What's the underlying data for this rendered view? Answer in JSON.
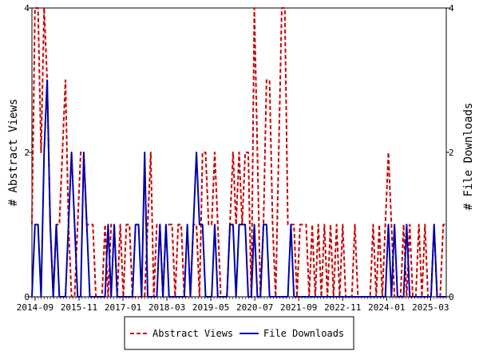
{
  "chart_data": {
    "type": "line",
    "title": "",
    "xlabel": "",
    "ylabel_left": "# Abstract Views",
    "ylabel_right": "# File Downloads",
    "x_ticks": [
      "2014-09",
      "2015-11",
      "2017-01",
      "2018-03",
      "2019-05",
      "2020-07",
      "2021-09",
      "2022-11",
      "2024-01",
      "2025-03"
    ],
    "x_range": [
      "2014-08",
      "2025-08"
    ],
    "ylim_left": [
      0,
      4
    ],
    "ylim_right": [
      0,
      4
    ],
    "y_ticks_left": [
      0,
      2,
      4
    ],
    "y_ticks_right": [
      0,
      2,
      4
    ],
    "grid": false,
    "legend_position": "bottom-center",
    "series": [
      {
        "name": "Abstract Views",
        "color": "#cc0000",
        "style": "dashed",
        "axis": "left",
        "values": [
          1,
          4,
          4,
          2,
          4,
          3,
          1,
          0,
          1,
          1,
          2,
          3,
          1,
          0,
          0,
          1,
          2,
          2,
          1,
          1,
          1,
          0,
          0,
          0,
          1,
          0,
          1,
          1,
          0,
          1,
          0,
          1,
          1,
          0,
          0,
          0,
          0,
          0,
          1,
          2,
          0,
          1,
          1,
          0,
          1,
          1,
          1,
          0,
          1,
          1,
          0,
          0,
          0,
          1,
          1,
          0,
          2,
          2,
          1,
          1,
          2,
          1,
          0,
          0,
          0,
          1,
          2,
          1,
          2,
          1,
          2,
          2,
          0,
          4,
          2,
          0,
          1,
          3,
          3,
          1,
          0,
          2,
          4,
          4,
          1,
          1,
          1,
          0,
          1,
          1,
          1,
          0,
          1,
          0,
          1,
          0,
          1,
          0,
          1,
          0,
          1,
          0,
          1,
          0,
          0,
          0,
          1,
          0,
          0,
          0,
          0,
          0,
          1,
          0,
          1,
          0,
          1,
          2,
          1,
          0,
          0,
          0,
          1,
          0,
          1,
          0,
          0,
          1,
          0,
          1,
          0,
          0,
          1,
          0,
          0,
          1,
          1
        ]
      },
      {
        "name": "File Downloads",
        "color": "#0000aa",
        "style": "solid",
        "axis": "right",
        "values": [
          0,
          1,
          1,
          0,
          2,
          3,
          1,
          0,
          1,
          0,
          0,
          0,
          1,
          2,
          1,
          0,
          0,
          2,
          1,
          0,
          0,
          0,
          0,
          0,
          0,
          1,
          0,
          1,
          0,
          0,
          0,
          0,
          0,
          0,
          1,
          1,
          0,
          2,
          0,
          0,
          0,
          0,
          1,
          0,
          1,
          0,
          0,
          0,
          0,
          0,
          0,
          1,
          0,
          1,
          2,
          1,
          1,
          0,
          0,
          0,
          1,
          0,
          0,
          0,
          0,
          1,
          1,
          0,
          1,
          1,
          1,
          0,
          0,
          1,
          0,
          0,
          1,
          1,
          0,
          0,
          0,
          0,
          0,
          0,
          0,
          1,
          0,
          0,
          0,
          0,
          0,
          0,
          0,
          0,
          0,
          0,
          0,
          0,
          0,
          0,
          0,
          0,
          0,
          0,
          0,
          0,
          0,
          0,
          0,
          0,
          0,
          0,
          0,
          0,
          0,
          0,
          0,
          1,
          0,
          1,
          0,
          0,
          0,
          1,
          0,
          0,
          0,
          0,
          0,
          0,
          0,
          0,
          1,
          0,
          0,
          0,
          0
        ]
      }
    ]
  }
}
